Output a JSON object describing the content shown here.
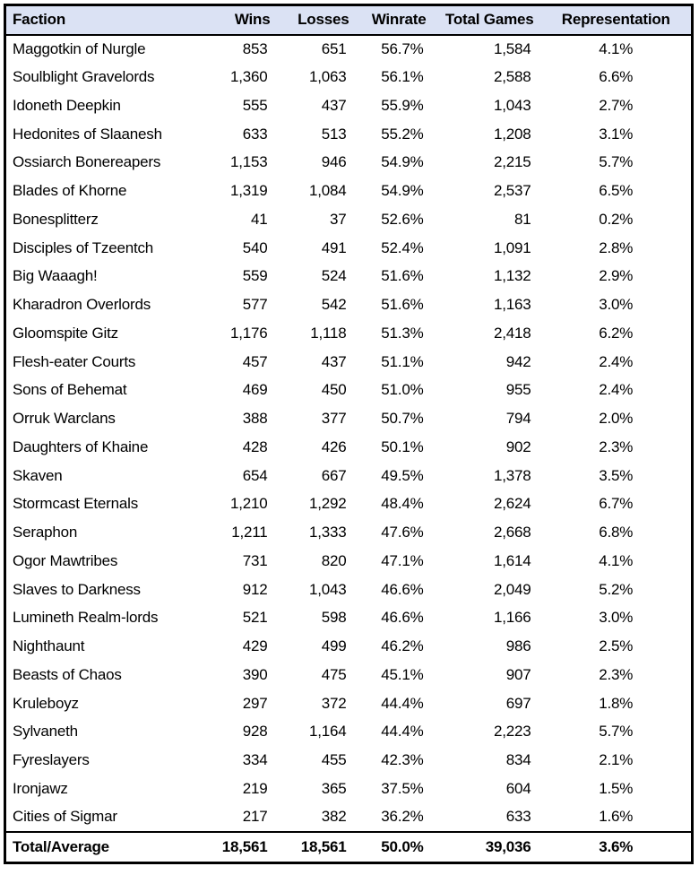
{
  "table": {
    "header_bg": "#dbe2f4",
    "border_color": "#000000",
    "columns": [
      {
        "label": "Faction",
        "align": "left"
      },
      {
        "label": "Wins",
        "align": "right"
      },
      {
        "label": "Losses",
        "align": "right"
      },
      {
        "label": "Winrate",
        "align": "right"
      },
      {
        "label": "Total Games",
        "align": "right"
      },
      {
        "label": "Representation",
        "align": "center"
      }
    ],
    "rows": [
      [
        "Maggotkin of Nurgle",
        "853",
        "651",
        "56.7%",
        "1,584",
        "4.1%"
      ],
      [
        "Soulblight Gravelords",
        "1,360",
        "1,063",
        "56.1%",
        "2,588",
        "6.6%"
      ],
      [
        "Idoneth Deepkin",
        "555",
        "437",
        "55.9%",
        "1,043",
        "2.7%"
      ],
      [
        "Hedonites of Slaanesh",
        "633",
        "513",
        "55.2%",
        "1,208",
        "3.1%"
      ],
      [
        "Ossiarch Bonereapers",
        "1,153",
        "946",
        "54.9%",
        "2,215",
        "5.7%"
      ],
      [
        "Blades of Khorne",
        "1,319",
        "1,084",
        "54.9%",
        "2,537",
        "6.5%"
      ],
      [
        "Bonesplitterz",
        "41",
        "37",
        "52.6%",
        "81",
        "0.2%"
      ],
      [
        "Disciples of Tzeentch",
        "540",
        "491",
        "52.4%",
        "1,091",
        "2.8%"
      ],
      [
        "Big Waaagh!",
        "559",
        "524",
        "51.6%",
        "1,132",
        "2.9%"
      ],
      [
        "Kharadron Overlords",
        "577",
        "542",
        "51.6%",
        "1,163",
        "3.0%"
      ],
      [
        "Gloomspite Gitz",
        "1,176",
        "1,118",
        "51.3%",
        "2,418",
        "6.2%"
      ],
      [
        "Flesh-eater Courts",
        "457",
        "437",
        "51.1%",
        "942",
        "2.4%"
      ],
      [
        "Sons of Behemat",
        "469",
        "450",
        "51.0%",
        "955",
        "2.4%"
      ],
      [
        "Orruk Warclans",
        "388",
        "377",
        "50.7%",
        "794",
        "2.0%"
      ],
      [
        "Daughters of Khaine",
        "428",
        "426",
        "50.1%",
        "902",
        "2.3%"
      ],
      [
        "Skaven",
        "654",
        "667",
        "49.5%",
        "1,378",
        "3.5%"
      ],
      [
        "Stormcast Eternals",
        "1,210",
        "1,292",
        "48.4%",
        "2,624",
        "6.7%"
      ],
      [
        "Seraphon",
        "1,211",
        "1,333",
        "47.6%",
        "2,668",
        "6.8%"
      ],
      [
        "Ogor Mawtribes",
        "731",
        "820",
        "47.1%",
        "1,614",
        "4.1%"
      ],
      [
        "Slaves to Darkness",
        "912",
        "1,043",
        "46.6%",
        "2,049",
        "5.2%"
      ],
      [
        "Lumineth Realm-lords",
        "521",
        "598",
        "46.6%",
        "1,166",
        "3.0%"
      ],
      [
        "Nighthaunt",
        "429",
        "499",
        "46.2%",
        "986",
        "2.5%"
      ],
      [
        "Beasts of Chaos",
        "390",
        "475",
        "45.1%",
        "907",
        "2.3%"
      ],
      [
        "Kruleboyz",
        "297",
        "372",
        "44.4%",
        "697",
        "1.8%"
      ],
      [
        "Sylvaneth",
        "928",
        "1,164",
        "44.4%",
        "2,223",
        "5.7%"
      ],
      [
        "Fyreslayers",
        "334",
        "455",
        "42.3%",
        "834",
        "2.1%"
      ],
      [
        "Ironjawz",
        "219",
        "365",
        "37.5%",
        "604",
        "1.5%"
      ],
      [
        "Cities of Sigmar",
        "217",
        "382",
        "36.2%",
        "633",
        "1.6%"
      ]
    ],
    "total_row": [
      "Total/Average",
      "18,561",
      "18,561",
      "50.0%",
      "39,036",
      "3.6%"
    ]
  },
  "chart_data": {
    "type": "table",
    "title": "",
    "columns": [
      "Faction",
      "Wins",
      "Losses",
      "Winrate",
      "Total Games",
      "Representation"
    ],
    "rows": [
      {
        "faction": "Maggotkin of Nurgle",
        "wins": 853,
        "losses": 651,
        "winrate_pct": 56.7,
        "total_games": 1584,
        "representation_pct": 4.1
      },
      {
        "faction": "Soulblight Gravelords",
        "wins": 1360,
        "losses": 1063,
        "winrate_pct": 56.1,
        "total_games": 2588,
        "representation_pct": 6.6
      },
      {
        "faction": "Idoneth Deepkin",
        "wins": 555,
        "losses": 437,
        "winrate_pct": 55.9,
        "total_games": 1043,
        "representation_pct": 2.7
      },
      {
        "faction": "Hedonites of Slaanesh",
        "wins": 633,
        "losses": 513,
        "winrate_pct": 55.2,
        "total_games": 1208,
        "representation_pct": 3.1
      },
      {
        "faction": "Ossiarch Bonereapers",
        "wins": 1153,
        "losses": 946,
        "winrate_pct": 54.9,
        "total_games": 2215,
        "representation_pct": 5.7
      },
      {
        "faction": "Blades of Khorne",
        "wins": 1319,
        "losses": 1084,
        "winrate_pct": 54.9,
        "total_games": 2537,
        "representation_pct": 6.5
      },
      {
        "faction": "Bonesplitterz",
        "wins": 41,
        "losses": 37,
        "winrate_pct": 52.6,
        "total_games": 81,
        "representation_pct": 0.2
      },
      {
        "faction": "Disciples of Tzeentch",
        "wins": 540,
        "losses": 491,
        "winrate_pct": 52.4,
        "total_games": 1091,
        "representation_pct": 2.8
      },
      {
        "faction": "Big Waaagh!",
        "wins": 559,
        "losses": 524,
        "winrate_pct": 51.6,
        "total_games": 1132,
        "representation_pct": 2.9
      },
      {
        "faction": "Kharadron Overlords",
        "wins": 577,
        "losses": 542,
        "winrate_pct": 51.6,
        "total_games": 1163,
        "representation_pct": 3.0
      },
      {
        "faction": "Gloomspite Gitz",
        "wins": 1176,
        "losses": 1118,
        "winrate_pct": 51.3,
        "total_games": 2418,
        "representation_pct": 6.2
      },
      {
        "faction": "Flesh-eater Courts",
        "wins": 457,
        "losses": 437,
        "winrate_pct": 51.1,
        "total_games": 942,
        "representation_pct": 2.4
      },
      {
        "faction": "Sons of Behemat",
        "wins": 469,
        "losses": 450,
        "winrate_pct": 51.0,
        "total_games": 955,
        "representation_pct": 2.4
      },
      {
        "faction": "Orruk Warclans",
        "wins": 388,
        "losses": 377,
        "winrate_pct": 50.7,
        "total_games": 794,
        "representation_pct": 2.0
      },
      {
        "faction": "Daughters of Khaine",
        "wins": 428,
        "losses": 426,
        "winrate_pct": 50.1,
        "total_games": 902,
        "representation_pct": 2.3
      },
      {
        "faction": "Skaven",
        "wins": 654,
        "losses": 667,
        "winrate_pct": 49.5,
        "total_games": 1378,
        "representation_pct": 3.5
      },
      {
        "faction": "Stormcast Eternals",
        "wins": 1210,
        "losses": 1292,
        "winrate_pct": 48.4,
        "total_games": 2624,
        "representation_pct": 6.7
      },
      {
        "faction": "Seraphon",
        "wins": 1211,
        "losses": 1333,
        "winrate_pct": 47.6,
        "total_games": 2668,
        "representation_pct": 6.8
      },
      {
        "faction": "Ogor Mawtribes",
        "wins": 731,
        "losses": 820,
        "winrate_pct": 47.1,
        "total_games": 1614,
        "representation_pct": 4.1
      },
      {
        "faction": "Slaves to Darkness",
        "wins": 912,
        "losses": 1043,
        "winrate_pct": 46.6,
        "total_games": 2049,
        "representation_pct": 5.2
      },
      {
        "faction": "Lumineth Realm-lords",
        "wins": 521,
        "losses": 598,
        "winrate_pct": 46.6,
        "total_games": 1166,
        "representation_pct": 3.0
      },
      {
        "faction": "Nighthaunt",
        "wins": 429,
        "losses": 499,
        "winrate_pct": 46.2,
        "total_games": 986,
        "representation_pct": 2.5
      },
      {
        "faction": "Beasts of Chaos",
        "wins": 390,
        "losses": 475,
        "winrate_pct": 45.1,
        "total_games": 907,
        "representation_pct": 2.3
      },
      {
        "faction": "Kruleboyz",
        "wins": 297,
        "losses": 372,
        "winrate_pct": 44.4,
        "total_games": 697,
        "representation_pct": 1.8
      },
      {
        "faction": "Sylvaneth",
        "wins": 928,
        "losses": 1164,
        "winrate_pct": 44.4,
        "total_games": 2223,
        "representation_pct": 5.7
      },
      {
        "faction": "Fyreslayers",
        "wins": 334,
        "losses": 455,
        "winrate_pct": 42.3,
        "total_games": 834,
        "representation_pct": 2.1
      },
      {
        "faction": "Ironjawz",
        "wins": 219,
        "losses": 365,
        "winrate_pct": 37.5,
        "total_games": 604,
        "representation_pct": 1.5
      },
      {
        "faction": "Cities of Sigmar",
        "wins": 217,
        "losses": 382,
        "winrate_pct": 36.2,
        "total_games": 633,
        "representation_pct": 1.6
      }
    ],
    "total_row": {
      "faction": "Total/Average",
      "wins": 18561,
      "losses": 18561,
      "winrate_pct": 50.0,
      "total_games": 39036,
      "representation_pct": 3.6
    },
    "layout": {
      "grid": false,
      "header_fill": "#dbe2f4",
      "outer_border": "thick-black",
      "total_row_bold": true
    }
  }
}
